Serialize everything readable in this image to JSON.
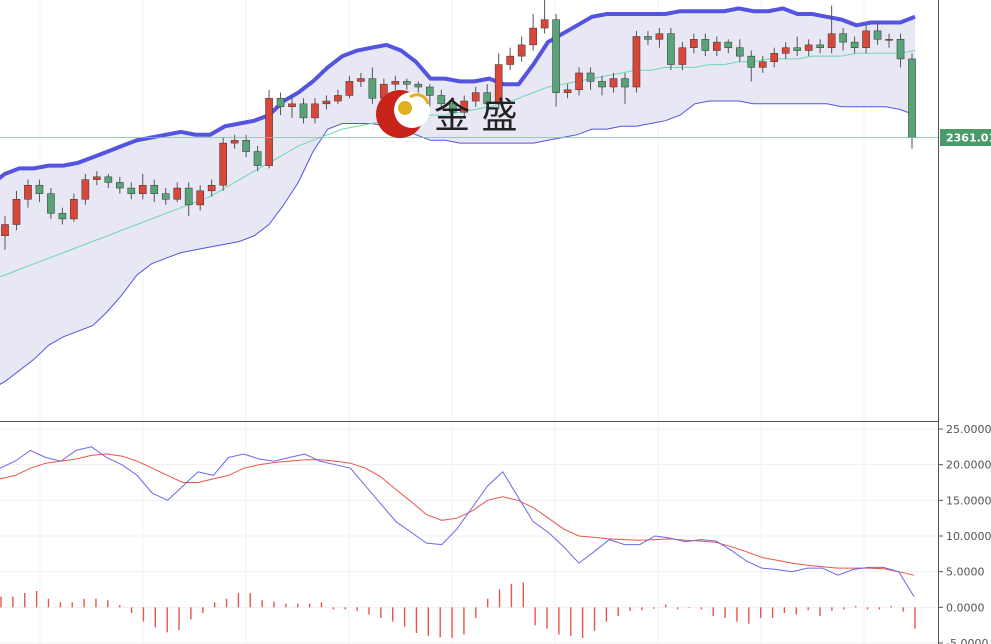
{
  "watermark": {
    "text": "金 盛"
  },
  "price_tag": {
    "value": "2361.01",
    "color": "#4a9a6a"
  },
  "colors": {
    "up": "#d9463a",
    "down": "#5aa378",
    "band_upper": "#5454e0",
    "band_fill": "#e8e8f5",
    "band_mid": "#6fd5b5",
    "macd": "#6a6ae8",
    "signal": "#e8554a",
    "hist": "#e8554a"
  },
  "chart_data": [
    {
      "type": "candlestick",
      "title": "",
      "ylim": [
        2260,
        2410
      ],
      "last_price": 2361.01,
      "candles": [
        [
          2326,
          2330,
          2321,
          2333
        ],
        [
          2330,
          2339,
          2328,
          2342
        ],
        [
          2339,
          2344,
          2336,
          2346
        ],
        [
          2344,
          2341,
          2338,
          2346
        ],
        [
          2341,
          2334,
          2332,
          2343
        ],
        [
          2334,
          2332,
          2330,
          2336
        ],
        [
          2332,
          2339,
          2331,
          2341
        ],
        [
          2339,
          2346,
          2337,
          2348
        ],
        [
          2346,
          2347,
          2344,
          2349
        ],
        [
          2347,
          2345,
          2343,
          2348
        ],
        [
          2345,
          2343,
          2341,
          2347
        ],
        [
          2343,
          2341,
          2339,
          2345
        ],
        [
          2341,
          2344,
          2339,
          2348
        ],
        [
          2344,
          2341,
          2338,
          2346
        ],
        [
          2341,
          2339,
          2337,
          2343
        ],
        [
          2339,
          2343,
          2338,
          2345
        ],
        [
          2343,
          2337,
          2333,
          2345
        ],
        [
          2337,
          2342,
          2335,
          2344
        ],
        [
          2342,
          2344,
          2340,
          2346
        ],
        [
          2344,
          2359,
          2342,
          2361
        ],
        [
          2359,
          2360,
          2357,
          2362
        ],
        [
          2360,
          2356,
          2354,
          2362
        ],
        [
          2356,
          2351,
          2349,
          2358
        ],
        [
          2351,
          2375,
          2350,
          2378
        ],
        [
          2375,
          2372,
          2369,
          2377
        ],
        [
          2372,
          2373,
          2368,
          2376
        ],
        [
          2373,
          2368,
          2366,
          2375
        ],
        [
          2368,
          2373,
          2366,
          2375
        ],
        [
          2373,
          2374,
          2371,
          2376
        ],
        [
          2374,
          2376,
          2373,
          2378
        ],
        [
          2376,
          2381,
          2375,
          2383
        ],
        [
          2381,
          2382,
          2379,
          2384
        ],
        [
          2382,
          2375,
          2373,
          2386
        ],
        [
          2375,
          2380,
          2374,
          2382
        ],
        [
          2380,
          2381,
          2378,
          2383
        ],
        [
          2381,
          2380,
          2378,
          2382
        ],
        [
          2380,
          2379,
          2377,
          2381
        ],
        [
          2379,
          2376,
          2372,
          2380
        ],
        [
          2376,
          2373,
          2371,
          2378
        ],
        [
          2373,
          2370,
          2367,
          2375
        ],
        [
          2370,
          2374,
          2368,
          2376
        ],
        [
          2374,
          2377,
          2372,
          2379
        ],
        [
          2377,
          2373,
          2371,
          2380
        ],
        [
          2373,
          2387,
          2371,
          2391
        ],
        [
          2387,
          2390,
          2385,
          2393
        ],
        [
          2390,
          2394,
          2388,
          2397
        ],
        [
          2394,
          2400,
          2392,
          2405
        ],
        [
          2400,
          2403,
          2398,
          2410
        ],
        [
          2403,
          2377,
          2372,
          2405
        ],
        [
          2377,
          2378,
          2375,
          2380
        ],
        [
          2378,
          2384,
          2376,
          2386
        ],
        [
          2384,
          2381,
          2378,
          2386
        ],
        [
          2381,
          2379,
          2376,
          2383
        ],
        [
          2379,
          2382,
          2377,
          2384
        ],
        [
          2382,
          2379,
          2373,
          2384
        ],
        [
          2379,
          2397,
          2377,
          2399
        ],
        [
          2397,
          2396,
          2394,
          2399
        ],
        [
          2396,
          2398,
          2393,
          2400
        ],
        [
          2398,
          2387,
          2385,
          2400
        ],
        [
          2387,
          2393,
          2385,
          2395
        ],
        [
          2393,
          2396,
          2391,
          2398
        ],
        [
          2396,
          2392,
          2390,
          2398
        ],
        [
          2392,
          2395,
          2390,
          2397
        ],
        [
          2395,
          2393,
          2391,
          2396
        ],
        [
          2393,
          2390,
          2388,
          2396
        ],
        [
          2390,
          2386,
          2381,
          2392
        ],
        [
          2386,
          2388,
          2384,
          2390
        ],
        [
          2388,
          2391,
          2386,
          2393
        ],
        [
          2391,
          2393,
          2389,
          2395
        ],
        [
          2393,
          2392,
          2390,
          2397
        ],
        [
          2392,
          2394,
          2390,
          2396
        ],
        [
          2394,
          2393,
          2391,
          2396
        ],
        [
          2393,
          2398,
          2391,
          2408
        ],
        [
          2398,
          2395,
          2392,
          2400
        ],
        [
          2395,
          2393,
          2391,
          2397
        ],
        [
          2393,
          2399,
          2391,
          2401
        ],
        [
          2399,
          2396,
          2394,
          2402
        ],
        [
          2396,
          2396,
          2393,
          2398
        ],
        [
          2396,
          2389,
          2386,
          2398
        ],
        [
          2389,
          2361,
          2357,
          2391
        ]
      ],
      "bollinger": {
        "upper": [
          2344,
          2348,
          2350,
          2350,
          2351,
          2351,
          2352,
          2354,
          2356,
          2358,
          2360,
          2361,
          2362,
          2363,
          2362,
          2362,
          2365,
          2366,
          2367,
          2369,
          2374,
          2377,
          2381,
          2386,
          2390,
          2392,
          2393,
          2394,
          2392,
          2388,
          2382,
          2382,
          2381,
          2381,
          2382,
          2380,
          2380,
          2387,
          2395,
          2398,
          2401,
          2404,
          2405,
          2405,
          2405,
          2405,
          2405,
          2406,
          2406,
          2406,
          2406,
          2407,
          2406,
          2406,
          2407,
          2405,
          2405,
          2404,
          2403,
          2401,
          2402,
          2402,
          2402,
          2404
        ],
        "middle": [
          2310,
          2312,
          2314,
          2316,
          2318,
          2320,
          2322,
          2324,
          2326,
          2328,
          2330,
          2332,
          2334,
          2336,
          2338,
          2340,
          2343,
          2346,
          2349,
          2352,
          2355,
          2358,
          2360,
          2362,
          2364,
          2365,
          2366,
          2367,
          2368,
          2368,
          2369,
          2369,
          2370,
          2371,
          2372,
          2373,
          2375,
          2377,
          2379,
          2380,
          2381,
          2382,
          2383,
          2384,
          2385,
          2385,
          2386,
          2386,
          2386,
          2387,
          2387,
          2388,
          2388,
          2389,
          2389,
          2389,
          2390,
          2390,
          2390,
          2391,
          2391,
          2391,
          2391,
          2392
        ],
        "lower": [
          2271,
          2274,
          2278,
          2282,
          2287,
          2290,
          2292,
          2294,
          2299,
          2305,
          2312,
          2316,
          2318,
          2320,
          2321,
          2322,
          2323,
          2324,
          2326,
          2330,
          2337,
          2345,
          2356,
          2364,
          2366,
          2366,
          2366,
          2365,
          2364,
          2362,
          2360,
          2360,
          2359,
          2359,
          2359,
          2359,
          2359,
          2359,
          2360,
          2361,
          2362,
          2364,
          2364,
          2365,
          2365,
          2366,
          2367,
          2369,
          2373,
          2374,
          2374,
          2374,
          2373,
          2373,
          2373,
          2373,
          2373,
          2373,
          2372,
          2372,
          2372,
          2372,
          2371,
          2369
        ]
      }
    },
    {
      "type": "line",
      "title": "",
      "ylim": [
        -5,
        25
      ],
      "yticks": [
        "25.0000",
        "20.0000",
        "15.0000",
        "10.0000",
        "5.0000",
        "0.0000",
        "-5.0000"
      ],
      "macd": [
        19.5,
        20.5,
        22,
        21,
        20.5,
        22,
        22.5,
        21,
        20,
        18.5,
        16,
        15,
        17,
        19,
        18.5,
        21,
        21.5,
        20.8,
        20.5,
        21,
        21.5,
        20.5,
        20,
        19.5,
        17,
        14.5,
        12,
        10.5,
        9,
        8.8,
        11,
        14,
        17,
        19,
        15.5,
        12,
        10.5,
        8.5,
        6.2,
        7.8,
        9.5,
        8.8,
        8.8,
        10,
        9.7,
        9.2,
        9.5,
        9.3,
        8,
        6.5,
        5.5,
        5.3,
        5,
        5.5,
        5.5,
        4.5,
        5.3,
        5.6,
        5.6,
        5,
        1.5
      ],
      "signal": [
        18,
        18.5,
        19.5,
        20.2,
        20.5,
        20.8,
        21.3,
        21.5,
        21.2,
        20.5,
        19.5,
        18.5,
        17.5,
        17.5,
        18,
        18.5,
        19.5,
        20,
        20.3,
        20.5,
        20.7,
        20.7,
        20.5,
        20.2,
        19.5,
        18.3,
        16.5,
        14.8,
        13,
        12.2,
        12.5,
        13.5,
        15,
        15.5,
        15,
        14,
        12.5,
        11,
        10,
        9.8,
        9.6,
        9.5,
        9.4,
        9.5,
        9.6,
        9.4,
        9.3,
        9.1,
        8.5,
        7.8,
        7,
        6.6,
        6.2,
        5.9,
        5.7,
        5.5,
        5.5,
        5.5,
        5.4,
        5,
        4.5
      ],
      "histogram": [
        1.5,
        1.5,
        2,
        2.3,
        1.2,
        0.7,
        0.7,
        1.2,
        1.2,
        1,
        0.3,
        -0.8,
        -2,
        -2.8,
        -3.5,
        -3.2,
        -1.7,
        -0.8,
        0.7,
        1.2,
        2,
        2,
        1,
        0.8,
        0.5,
        0.5,
        0.5,
        0.7,
        -0.3,
        -0.3,
        -0.5,
        -1,
        -1.5,
        -2,
        -2.7,
        -3.6,
        -4,
        -4.2,
        -4.3,
        -3.8,
        -1.5,
        1.2,
        2.5,
        3.3,
        3.5,
        -2.5,
        -3,
        -3.8,
        -4,
        -4.3,
        -3.3,
        -2,
        -1.2,
        -0.5,
        -0.4,
        -0.2,
        0.4,
        -0.3,
        -0.1,
        -0.3,
        -1.2,
        -1.5,
        -2,
        -2.3,
        -1.5,
        -1.5,
        -0.8,
        -1,
        -0.4,
        -1.2,
        -0.5,
        -0.3,
        0.2,
        -0.3,
        -0.3,
        0.2,
        -0.6,
        -3
      ]
    }
  ]
}
